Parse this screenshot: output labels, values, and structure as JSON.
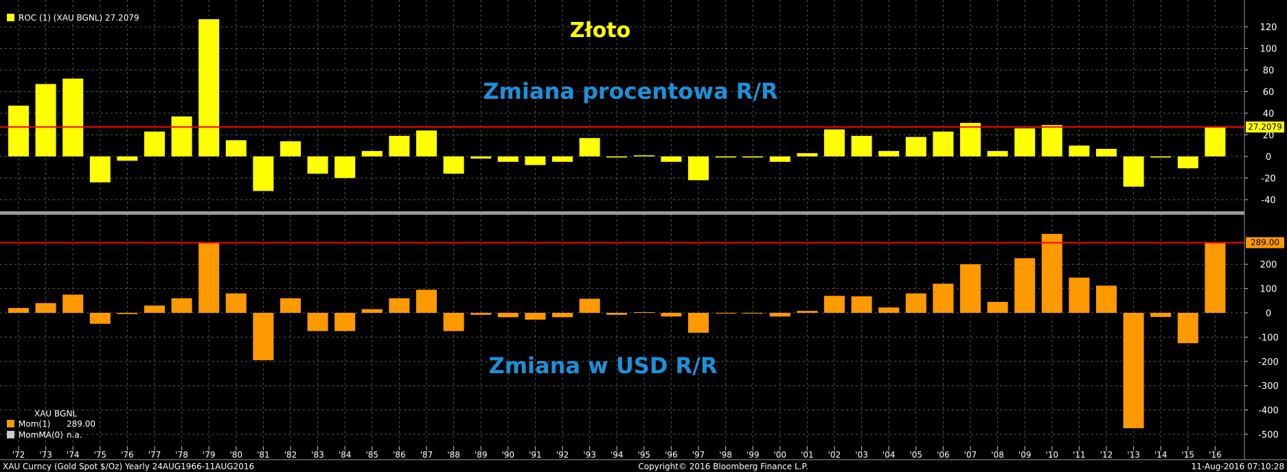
{
  "chart_data": [
    {
      "type": "bar",
      "legend": "ROC (1) (XAU BGNL) 27.2079",
      "title": "Złoto",
      "subtitle": "Zmiana procentowa R/R",
      "ylim": [
        -50,
        140
      ],
      "yticks": [
        120,
        100,
        80,
        60,
        40,
        20,
        0,
        -20,
        -40
      ],
      "reference_line": 27.2079,
      "last_value_label": "27.2079",
      "bar_color": "#ffff00",
      "values": [
        47,
        67,
        72,
        -24,
        -4,
        23,
        37,
        127,
        15,
        -32,
        14,
        -16,
        -20,
        5,
        19,
        24,
        -16,
        -2,
        -5,
        -8,
        -5,
        17,
        -1,
        1,
        -5,
        -22,
        -1,
        -1,
        -5,
        3,
        25,
        19,
        5,
        18,
        23,
        31,
        5,
        26,
        29,
        10,
        7,
        -28,
        -1,
        -11,
        27.2
      ]
    },
    {
      "type": "bar",
      "legend_group": "XAU BGNL",
      "legend_items": [
        {
          "label": "Mom(1)",
          "value": "289.00",
          "color": "#ff9900"
        },
        {
          "label": "MomMA(0)",
          "value": "n.a.",
          "color": "#cccccc"
        }
      ],
      "subtitle": "Zmiana w USD R/R",
      "ylim": [
        -550,
        310
      ],
      "yticks": [
        200,
        100,
        0,
        -100,
        -200,
        -300,
        -400,
        -500
      ],
      "reference_line": 289,
      "last_value_label": "289.00",
      "bar_color": "#ff9900",
      "values": [
        20,
        40,
        75,
        -45,
        -5,
        30,
        60,
        290,
        80,
        -195,
        60,
        -75,
        -75,
        15,
        60,
        95,
        -75,
        -8,
        -18,
        -28,
        -18,
        58,
        -8,
        3,
        -15,
        -82,
        -3,
        -3,
        -15,
        8,
        70,
        68,
        22,
        80,
        120,
        200,
        45,
        225,
        325,
        145,
        112,
        -475,
        -17,
        -125,
        289
      ]
    }
  ],
  "categories": [
    "'72",
    "'73",
    "'74",
    "'75",
    "'76",
    "'77",
    "'78",
    "'79",
    "'80",
    "'81",
    "'82",
    "'83",
    "'84",
    "'85",
    "'86",
    "'87",
    "'88",
    "'89",
    "'90",
    "'91",
    "'92",
    "'93",
    "'94",
    "'95",
    "'96",
    "'97",
    "'98",
    "'99",
    "'00",
    "'01",
    "'02",
    "'03",
    "'04",
    "'05",
    "'06",
    "'07",
    "'08",
    "'09",
    "'10",
    "'11",
    "'12",
    "'13",
    "'14",
    "'15",
    "'16"
  ],
  "footer": {
    "left": "XAU Curncy (Gold Spot  $/Oz) Yearly 24AUG1966-11AUG2016",
    "center": "Copyright© 2016 Bloomberg Finance L.P.",
    "right": "11-Aug-2016 07:10:28"
  },
  "colors": {
    "background": "#000000",
    "title_yellow": "#ffff00",
    "subtitle_blue": "#1e90d8",
    "reference_red": "#ff0000",
    "grid": "#555555"
  }
}
